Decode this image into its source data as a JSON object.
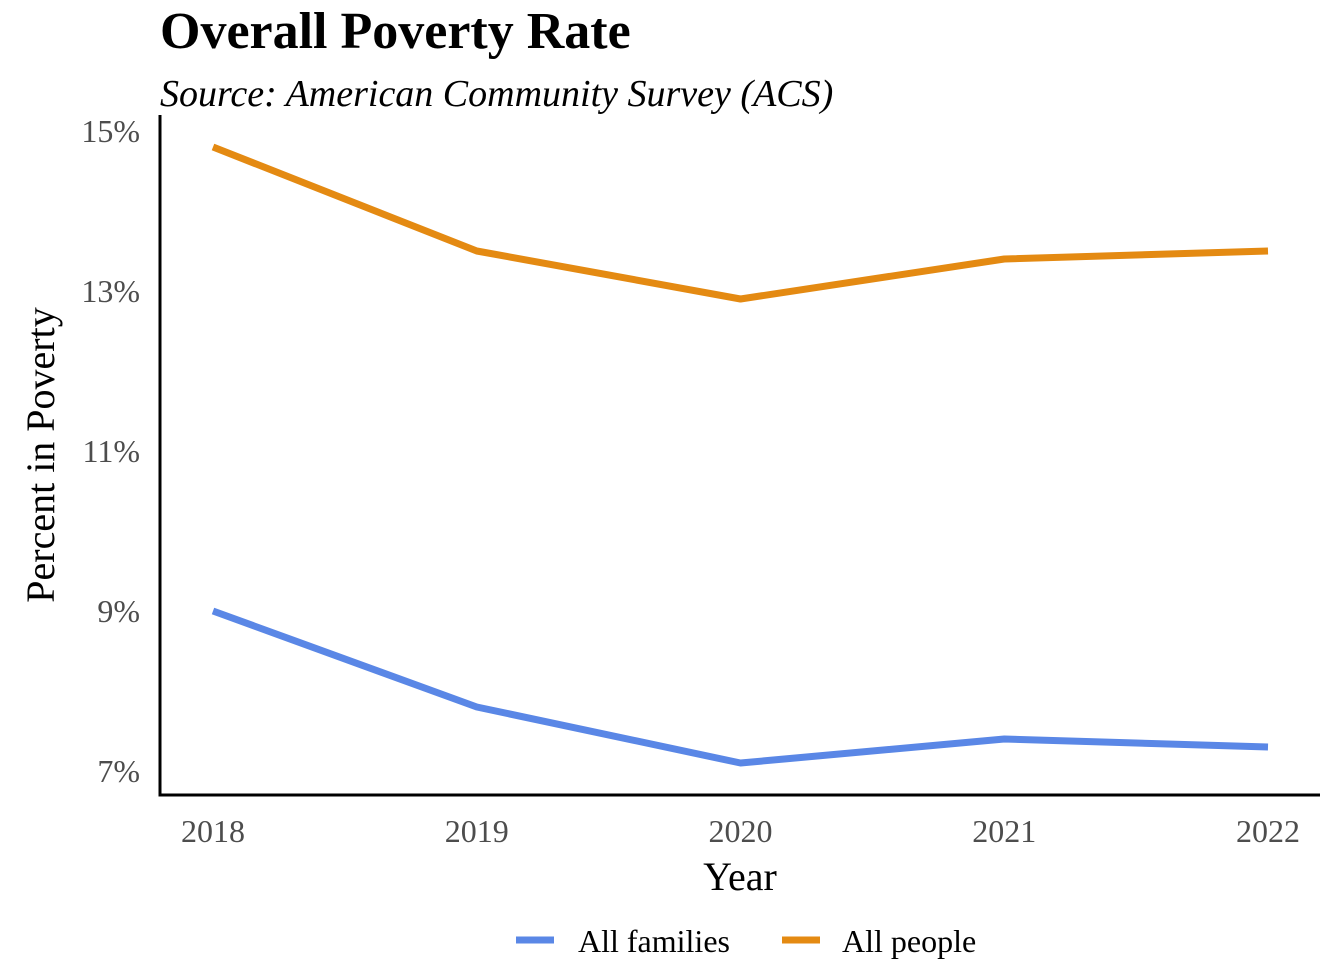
{
  "chart_data": {
    "type": "line",
    "title": "Overall Poverty Rate",
    "subtitle": "Source: American Community Survey (ACS)",
    "xlabel": "Year",
    "ylabel": "Percent in Poverty",
    "x": [
      "2018",
      "2019",
      "2020",
      "2021",
      "2022"
    ],
    "ylim": [
      6.7,
      15.2
    ],
    "yticks": [
      7,
      9,
      11,
      13,
      15
    ],
    "ytick_labels": [
      "7%",
      "9%",
      "11%",
      "13%",
      "15%"
    ],
    "grid": false,
    "legend": "bottom",
    "series": [
      {
        "name": "All families",
        "color": "#5a87e6",
        "values": [
          9.0,
          7.8,
          7.1,
          7.4,
          7.3
        ]
      },
      {
        "name": "All people",
        "color": "#e48a12",
        "values": [
          14.8,
          13.5,
          12.9,
          13.4,
          13.5
        ]
      }
    ]
  }
}
